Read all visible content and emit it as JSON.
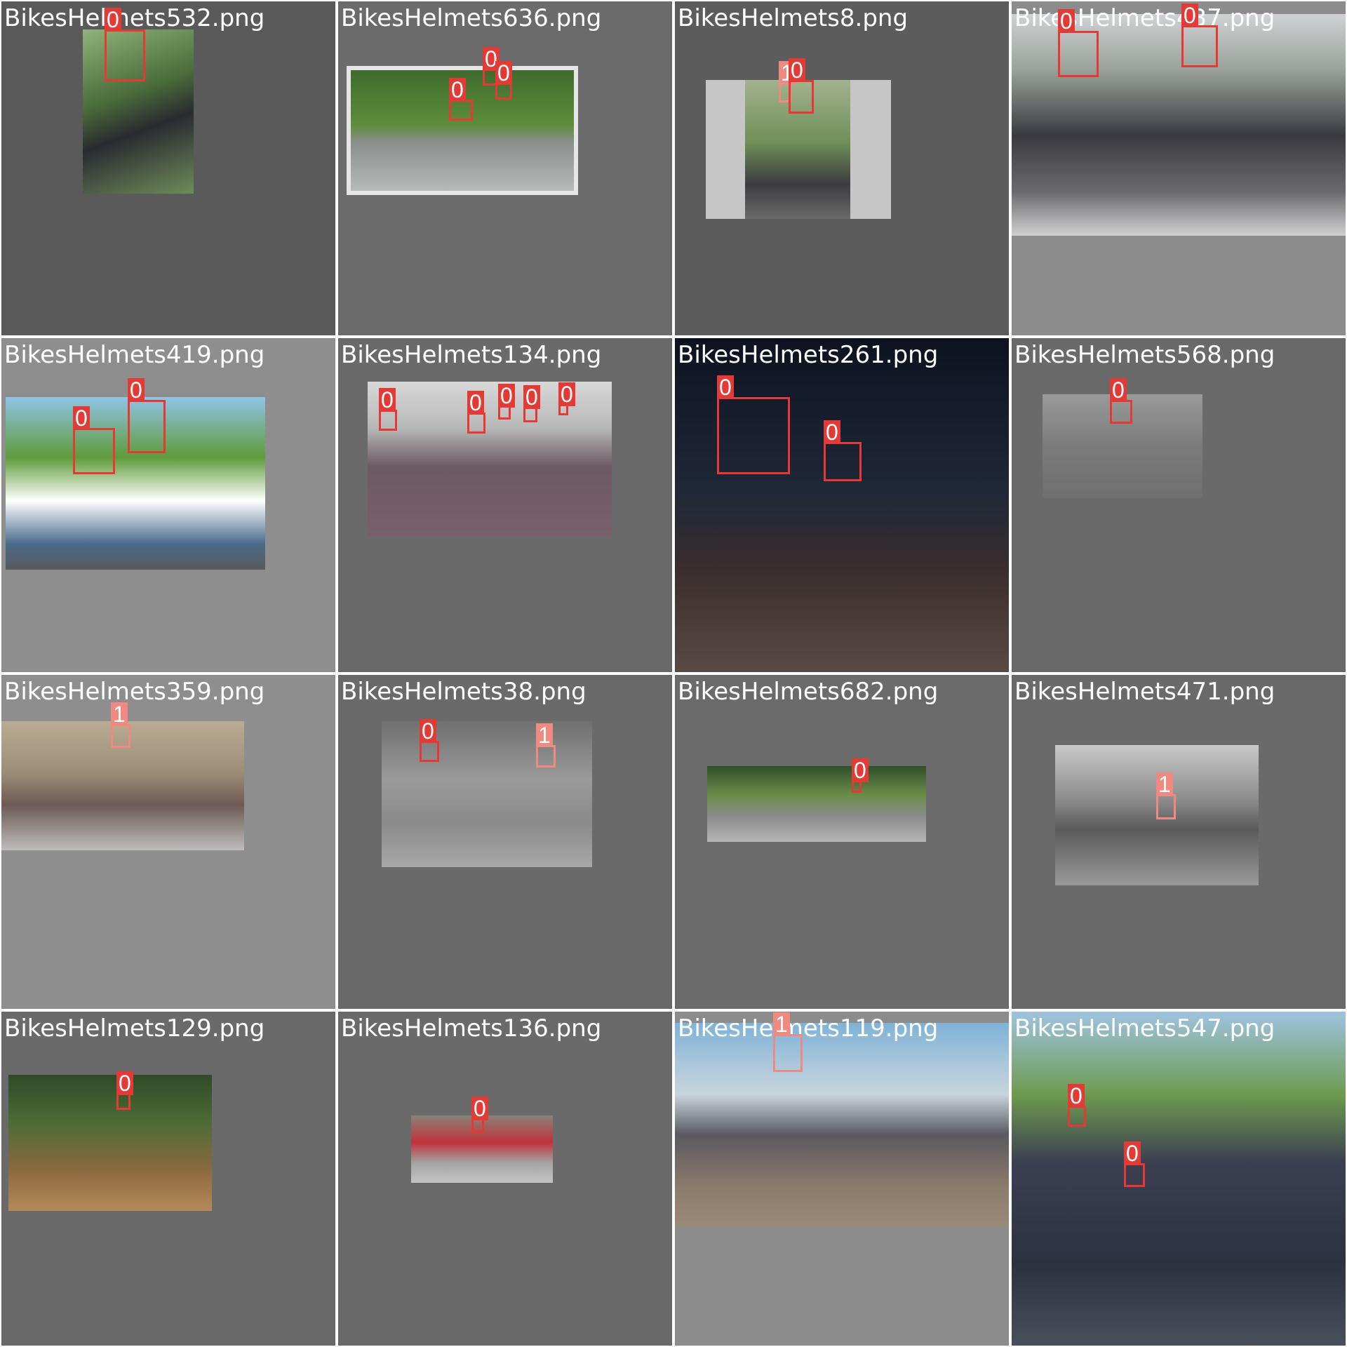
{
  "colors": {
    "class0": "#e53935",
    "class1": "#f08a80",
    "label_text": "#ffffff"
  },
  "tiles": [
    {
      "file": "BikesHelmets532.png",
      "boxes": [
        {
          "cls": "0"
        }
      ]
    },
    {
      "file": "BikesHelmets636.png",
      "boxes": [
        {
          "cls": "0"
        },
        {
          "cls": "0"
        },
        {
          "cls": "0"
        }
      ]
    },
    {
      "file": "BikesHelmets8.png",
      "boxes": [
        {
          "cls": "1"
        },
        {
          "cls": "0"
        }
      ]
    },
    {
      "file": "BikesHelmets437.png",
      "boxes": [
        {
          "cls": "0"
        },
        {
          "cls": "0"
        }
      ]
    },
    {
      "file": "BikesHelmets419.png",
      "boxes": [
        {
          "cls": "0"
        },
        {
          "cls": "0"
        }
      ]
    },
    {
      "file": "BikesHelmets134.png",
      "boxes": [
        {
          "cls": "0"
        },
        {
          "cls": "0"
        },
        {
          "cls": "0"
        },
        {
          "cls": "0"
        },
        {
          "cls": "0"
        }
      ]
    },
    {
      "file": "BikesHelmets261.png",
      "boxes": [
        {
          "cls": "0"
        },
        {
          "cls": "0"
        }
      ]
    },
    {
      "file": "BikesHelmets568.png",
      "boxes": [
        {
          "cls": "0"
        }
      ]
    },
    {
      "file": "BikesHelmets359.png",
      "boxes": [
        {
          "cls": "1"
        }
      ]
    },
    {
      "file": "BikesHelmets38.png",
      "boxes": [
        {
          "cls": "0"
        },
        {
          "cls": "1"
        }
      ]
    },
    {
      "file": "BikesHelmets682.png",
      "boxes": [
        {
          "cls": "0"
        }
      ]
    },
    {
      "file": "BikesHelmets471.png",
      "boxes": [
        {
          "cls": "1"
        }
      ]
    },
    {
      "file": "BikesHelmets129.png",
      "boxes": [
        {
          "cls": "0"
        }
      ]
    },
    {
      "file": "BikesHelmets136.png",
      "boxes": [
        {
          "cls": "0"
        }
      ]
    },
    {
      "file": "BikesHelmets119.png",
      "boxes": [
        {
          "cls": "1"
        }
      ]
    },
    {
      "file": "BikesHelmets547.png",
      "boxes": [
        {
          "cls": "0"
        },
        {
          "cls": "0"
        }
      ]
    }
  ]
}
